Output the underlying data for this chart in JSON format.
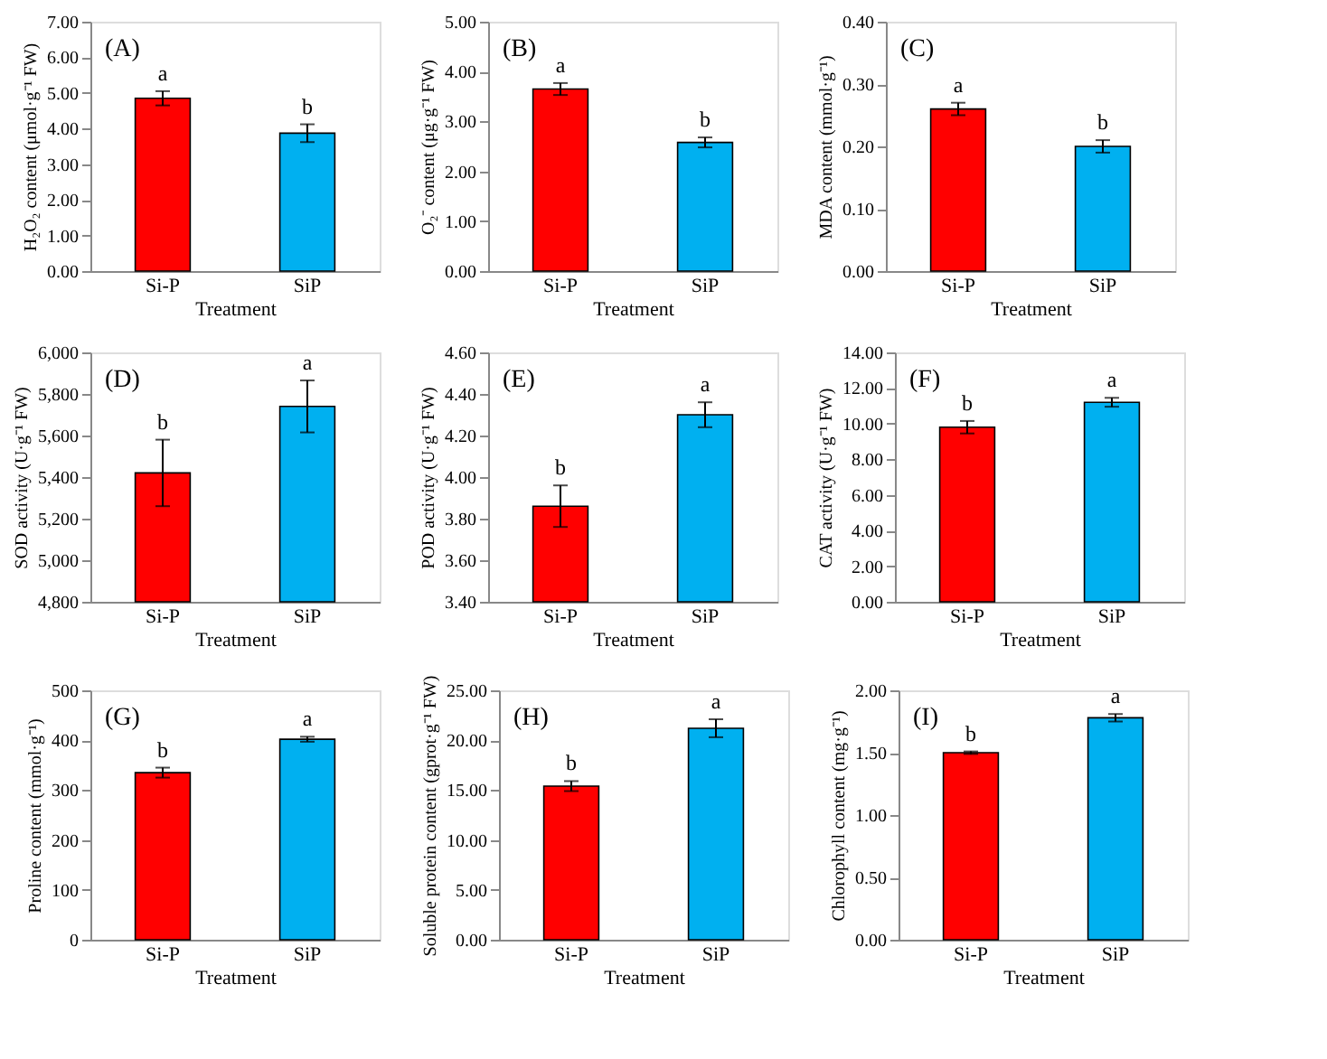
{
  "chart_data": [
    {
      "type": "bar",
      "categories": [
        "Si-P",
        "SiP"
      ],
      "values": [
        4.85,
        3.87
      ],
      "errors": [
        0.2,
        0.25
      ],
      "colors": [
        "#ff0000",
        "#00b0f0"
      ],
      "xlabel": "Treatment",
      "ylabel": "H₂O₂ content (μmol·g⁻¹ FW)",
      "ylim": [
        0,
        7
      ],
      "yticks": [
        {
          "value": 0,
          "label": "0.00"
        },
        {
          "value": 1,
          "label": "1.00"
        },
        {
          "value": 2,
          "label": "2.00"
        },
        {
          "value": 3,
          "label": "3.00"
        },
        {
          "value": 4,
          "label": "4.00"
        },
        {
          "value": 5,
          "label": "5.00"
        },
        {
          "value": 6,
          "label": "6.00"
        },
        {
          "value": 7,
          "label": "7.00"
        }
      ],
      "grid": false,
      "annotations": [
        "(A)",
        {
          "text": "a",
          "x": "Si-P",
          "y": 5.05
        },
        {
          "text": "b",
          "x": "SiP",
          "y": 4.12
        }
      ]
    },
    {
      "type": "bar",
      "categories": [
        "Si-P",
        "SiP"
      ],
      "values": [
        3.65,
        2.58
      ],
      "errors": [
        0.12,
        0.1
      ],
      "colors": [
        "#ff0000",
        "#00b0f0"
      ],
      "xlabel": "Treatment",
      "ylabel": "O₂⁻ content (μg·g⁻¹ FW)",
      "ylim": [
        0,
        5
      ],
      "yticks": [
        {
          "value": 0,
          "label": "0.00"
        },
        {
          "value": 1,
          "label": "1.00"
        },
        {
          "value": 2,
          "label": "2.00"
        },
        {
          "value": 3,
          "label": "3.00"
        },
        {
          "value": 4,
          "label": "4.00"
        },
        {
          "value": 5,
          "label": "5.00"
        }
      ],
      "grid": false,
      "annotations": [
        "(B)",
        {
          "text": "a",
          "x": "Si-P",
          "y": 3.77
        },
        {
          "text": "b",
          "x": "SiP",
          "y": 2.68
        }
      ]
    },
    {
      "type": "bar",
      "categories": [
        "Si-P",
        "SiP"
      ],
      "values": [
        0.26,
        0.2
      ],
      "errors": [
        0.01,
        0.01
      ],
      "colors": [
        "#ff0000",
        "#00b0f0"
      ],
      "xlabel": "Treatment",
      "ylabel": "MDA content (mmol·g⁻¹)",
      "ylim": [
        0,
        0.4
      ],
      "yticks": [
        {
          "value": 0,
          "label": "0.00"
        },
        {
          "value": 0.1,
          "label": "0.10"
        },
        {
          "value": 0.2,
          "label": "0.20"
        },
        {
          "value": 0.3,
          "label": "0.30"
        },
        {
          "value": 0.4,
          "label": "0.40"
        }
      ],
      "grid": false,
      "annotations": [
        "(C)",
        {
          "text": "a",
          "x": "Si-P",
          "y": 0.27
        },
        {
          "text": "b",
          "x": "SiP",
          "y": 0.21
        }
      ]
    },
    {
      "type": "bar",
      "categories": [
        "Si-P",
        "SiP"
      ],
      "values": [
        5420,
        5740
      ],
      "errors": [
        160,
        125
      ],
      "colors": [
        "#ff0000",
        "#00b0f0"
      ],
      "xlabel": "Treatment",
      "ylabel": "SOD activity (U·g⁻¹ FW)",
      "ylim": [
        4800,
        6000
      ],
      "yticks": [
        {
          "value": 4800,
          "label": "4,800"
        },
        {
          "value": 5000,
          "label": "5,000"
        },
        {
          "value": 5200,
          "label": "5,200"
        },
        {
          "value": 5400,
          "label": "5,400"
        },
        {
          "value": 5600,
          "label": "5,600"
        },
        {
          "value": 5800,
          "label": "5,800"
        },
        {
          "value": 6000,
          "label": "6,000"
        }
      ],
      "grid": false,
      "annotations": [
        "(D)",
        {
          "text": "b",
          "x": "Si-P",
          "y": 5580
        },
        {
          "text": "a",
          "x": "SiP",
          "y": 5865
        }
      ]
    },
    {
      "type": "bar",
      "categories": [
        "Si-P",
        "SiP"
      ],
      "values": [
        3.86,
        4.3
      ],
      "errors": [
        0.1,
        0.06
      ],
      "colors": [
        "#ff0000",
        "#00b0f0"
      ],
      "xlabel": "Treatment",
      "ylabel": "POD activity (U·g⁻¹ FW)",
      "ylim": [
        3.4,
        4.6
      ],
      "yticks": [
        {
          "value": 3.4,
          "label": "3.40"
        },
        {
          "value": 3.6,
          "label": "3.60"
        },
        {
          "value": 3.8,
          "label": "3.80"
        },
        {
          "value": 4.0,
          "label": "4.00"
        },
        {
          "value": 4.2,
          "label": "4.20"
        },
        {
          "value": 4.4,
          "label": "4.40"
        },
        {
          "value": 4.6,
          "label": "4.60"
        }
      ],
      "grid": false,
      "annotations": [
        "(E)",
        {
          "text": "b",
          "x": "Si-P",
          "y": 3.96
        },
        {
          "text": "a",
          "x": "SiP",
          "y": 4.36
        }
      ]
    },
    {
      "type": "bar",
      "categories": [
        "Si-P",
        "SiP"
      ],
      "values": [
        9.8,
        11.2
      ],
      "errors": [
        0.35,
        0.25
      ],
      "colors": [
        "#ff0000",
        "#00b0f0"
      ],
      "xlabel": "Treatment",
      "ylabel": "CAT activity (U·g⁻¹ FW)",
      "ylim": [
        0,
        14
      ],
      "yticks": [
        {
          "value": 0,
          "label": "0.00"
        },
        {
          "value": 2,
          "label": "2.00"
        },
        {
          "value": 4,
          "label": "4.00"
        },
        {
          "value": 6,
          "label": "6.00"
        },
        {
          "value": 8,
          "label": "8.00"
        },
        {
          "value": 10,
          "label": "10.00"
        },
        {
          "value": 12,
          "label": "12.00"
        },
        {
          "value": 14,
          "label": "14.00"
        }
      ],
      "grid": false,
      "annotations": [
        "(F)",
        {
          "text": "b",
          "x": "Si-P",
          "y": 10.15
        },
        {
          "text": "a",
          "x": "SiP",
          "y": 11.45
        }
      ]
    },
    {
      "type": "bar",
      "categories": [
        "Si-P",
        "SiP"
      ],
      "values": [
        335,
        402
      ],
      "errors": [
        10,
        5
      ],
      "colors": [
        "#ff0000",
        "#00b0f0"
      ],
      "xlabel": "Treatment",
      "ylabel": "Proline content (mmol·g⁻¹)",
      "ylim": [
        0,
        500
      ],
      "yticks": [
        0,
        100,
        200,
        300,
        400,
        500
      ],
      "grid": false,
      "annotations": [
        "(G)",
        {
          "text": "b",
          "x": "Si-P",
          "y": 345
        },
        {
          "text": "a",
          "x": "SiP",
          "y": 407
        }
      ]
    },
    {
      "type": "bar",
      "categories": [
        "Si-P",
        "SiP"
      ],
      "values": [
        15.4,
        21.2
      ],
      "errors": [
        0.5,
        0.9
      ],
      "colors": [
        "#ff0000",
        "#00b0f0"
      ],
      "xlabel": "Treatment",
      "ylabel": "Soluble protein content (gprot·g⁻¹ FW)",
      "ylim": [
        0,
        25
      ],
      "yticks": [
        {
          "value": 0,
          "label": "0.00"
        },
        {
          "value": 5,
          "label": "5.00"
        },
        {
          "value": 10,
          "label": "10.00"
        },
        {
          "value": 15,
          "label": "15.00"
        },
        {
          "value": 20,
          "label": "20.00"
        },
        {
          "value": 25,
          "label": "25.00"
        }
      ],
      "grid": false,
      "annotations": [
        "(H)",
        {
          "text": "b",
          "x": "Si-P",
          "y": 15.9
        },
        {
          "text": "a",
          "x": "SiP",
          "y": 22.1
        }
      ]
    },
    {
      "type": "bar",
      "categories": [
        "Si-P",
        "SiP"
      ],
      "values": [
        1.5,
        1.78
      ],
      "errors": [
        0.01,
        0.03
      ],
      "colors": [
        "#ff0000",
        "#00b0f0"
      ],
      "xlabel": "Treatment",
      "ylabel": "Chlorophyll content (mg·g⁻¹)",
      "ylim": [
        0,
        2
      ],
      "yticks": [
        {
          "value": 0,
          "label": "0.00"
        },
        {
          "value": 0.5,
          "label": "0.50"
        },
        {
          "value": 1,
          "label": "1.00"
        },
        {
          "value": 1.5,
          "label": "1.50"
        },
        {
          "value": 2,
          "label": "2.00"
        }
      ],
      "grid": false,
      "annotations": [
        "(I)",
        {
          "text": "b",
          "x": "Si-P",
          "y": 1.51
        },
        {
          "text": "a",
          "x": "SiP",
          "y": 1.81
        }
      ]
    }
  ]
}
